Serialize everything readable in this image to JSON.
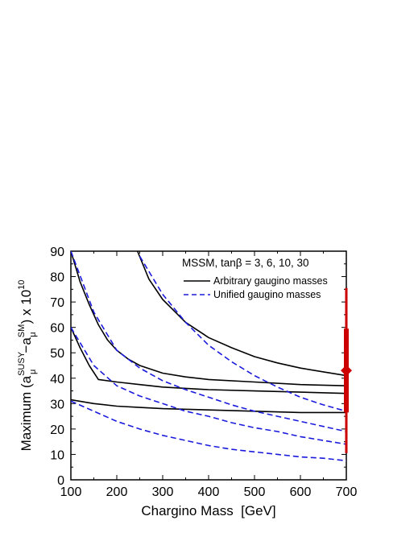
{
  "chart_data": {
    "type": "line",
    "xlabel": "Chargino Mass  [GeV]",
    "ylabel_parts": {
      "prefix": "Maximum (a",
      "sub1": "μ",
      "sup1": "SUSY",
      "mid": "−a",
      "sub2": "μ",
      "sup2": "SM",
      "suffix": ") x 10",
      "exp": "10"
    },
    "xlim": [
      100,
      700
    ],
    "ylim": [
      0,
      90
    ],
    "x_ticks": [
      100,
      200,
      300,
      400,
      500,
      600,
      700
    ],
    "y_ticks": [
      0,
      10,
      20,
      30,
      40,
      50,
      60,
      70,
      80,
      90
    ],
    "grid": false,
    "legend": {
      "title": "MSSM, tanβ = 3, 6, 10, 30",
      "position": "top-right",
      "entries": [
        {
          "label": "Arbitrary gaugino masses",
          "style": "solid",
          "color": "#000000"
        },
        {
          "label": "Unified gaugino masses",
          "style": "dashed",
          "color": "#1a1adc"
        }
      ]
    },
    "series": [
      {
        "group": "arbitrary",
        "color": "#000000",
        "dash": "solid",
        "x": [
          245,
          270,
          300,
          350,
          400,
          450,
          500,
          550,
          600,
          650,
          700
        ],
        "y": [
          90,
          79,
          71,
          62,
          56,
          52,
          48.5,
          46,
          44,
          42.5,
          41
        ]
      },
      {
        "group": "arbitrary",
        "color": "#000000",
        "dash": "solid",
        "x": [
          100,
          120,
          140,
          160,
          180,
          200,
          225,
          250,
          300,
          350,
          400,
          500,
          600,
          700
        ],
        "y": [
          90,
          78,
          69,
          61,
          55,
          51,
          47.5,
          45,
          42,
          40.5,
          39.5,
          38.5,
          37.5,
          37
        ]
      },
      {
        "group": "arbitrary",
        "color": "#000000",
        "dash": "solid",
        "x": [
          100,
          120,
          140,
          160,
          200,
          250,
          300,
          400,
          500,
          600,
          700
        ],
        "y": [
          60,
          52,
          45,
          39.5,
          38.5,
          37.5,
          36.5,
          35.5,
          35,
          34.5,
          34
        ]
      },
      {
        "group": "arbitrary",
        "color": "#000000",
        "dash": "solid",
        "x": [
          100,
          150,
          200,
          250,
          300,
          400,
          500,
          600,
          700
        ],
        "y": [
          31.5,
          30,
          29,
          28.5,
          28,
          27.5,
          27,
          26.5,
          26.5
        ]
      },
      {
        "group": "unified",
        "color": "#1a1adc",
        "dash": "dashed",
        "x": [
          250,
          300,
          350,
          400,
          450,
          500,
          550,
          600,
          650,
          700
        ],
        "y": [
          88,
          73,
          62,
          53,
          46.5,
          41,
          36.5,
          32.5,
          29.5,
          27
        ]
      },
      {
        "group": "unified",
        "color": "#1a1adc",
        "dash": "dashed",
        "x": [
          100,
          150,
          200,
          250,
          300,
          350,
          400,
          450,
          500,
          550,
          600,
          650,
          700
        ],
        "y": [
          90,
          66,
          51,
          44,
          39,
          35.5,
          32.5,
          29.5,
          27,
          25,
          23,
          21,
          19
        ]
      },
      {
        "group": "unified",
        "color": "#1a1adc",
        "dash": "dashed",
        "x": [
          100,
          150,
          200,
          250,
          300,
          350,
          400,
          450,
          500,
          550,
          600,
          650,
          700
        ],
        "y": [
          60,
          45,
          37,
          33,
          30,
          27,
          25,
          22.5,
          20.5,
          19,
          17,
          15.5,
          14
        ]
      },
      {
        "group": "unified",
        "color": "#1a1adc",
        "dash": "dashed",
        "x": [
          100,
          150,
          200,
          250,
          300,
          350,
          400,
          450,
          500,
          550,
          600,
          650,
          700
        ],
        "y": [
          31,
          27,
          23,
          20,
          17.5,
          15.5,
          13.5,
          12,
          11,
          10,
          9,
          8.5,
          7.5
        ]
      }
    ],
    "measurement": {
      "color": "#cc0000",
      "x": 700,
      "central": 43,
      "inner_band": [
        26.5,
        59.5
      ],
      "outer_band": [
        10.5,
        75.5
      ]
    }
  }
}
